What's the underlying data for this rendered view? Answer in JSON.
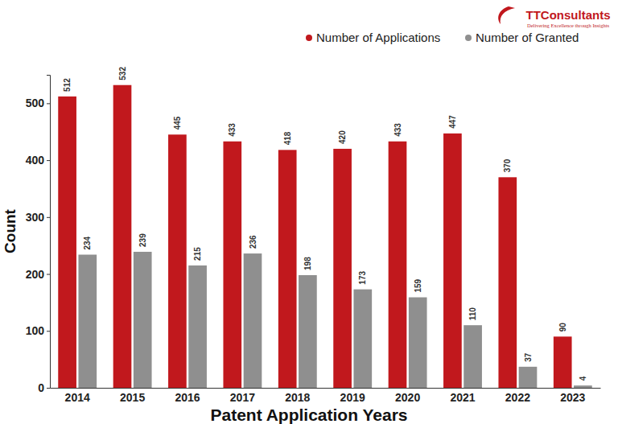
{
  "chart_data": {
    "type": "bar",
    "x_label": "Patent Application Years",
    "y_label": "Count",
    "annotations": [
      "TTConsultants",
      "Delivering Excellence through Insights"
    ],
    "categories": [
      "2014",
      "2015",
      "2016",
      "2017",
      "2018",
      "2019",
      "2020",
      "2021",
      "2022",
      "2023"
    ],
    "series": [
      {
        "name": "Number of Applications",
        "color": "#c1181d",
        "values": [
          512,
          532,
          445,
          433,
          418,
          420,
          433,
          447,
          370,
          90
        ]
      },
      {
        "name": "Number of Granted",
        "color": "#8f8f8f",
        "values": [
          234,
          239,
          215,
          236,
          198,
          173,
          159,
          110,
          37,
          4
        ]
      }
    ],
    "ylim": [
      0,
      550
    ],
    "yticks": [
      0,
      100,
      200,
      300,
      400,
      500
    ],
    "grid": false,
    "legend": "top-right",
    "data_labels": true
  }
}
